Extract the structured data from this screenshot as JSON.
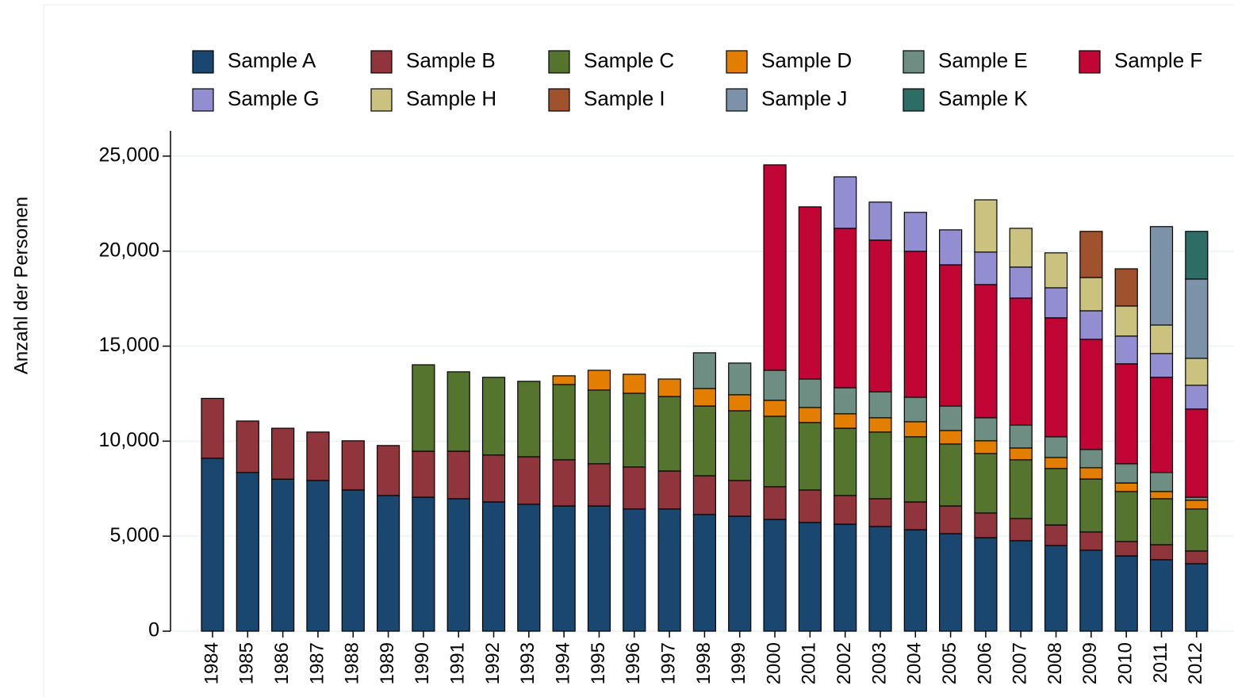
{
  "chart_data": {
    "type": "stacked_bar",
    "y_label": "Anzahl der Personen",
    "categories": [
      "1984",
      "1985",
      "1986",
      "1987",
      "1988",
      "1989",
      "1990",
      "1991",
      "1992",
      "1993",
      "1994",
      "1995",
      "1996",
      "1997",
      "1998",
      "1999",
      "2000",
      "2001",
      "2002",
      "2003",
      "2004",
      "2005",
      "2006",
      "2007",
      "2008",
      "2009",
      "2010",
      "2011",
      "2012"
    ],
    "ylim": [
      0,
      26330
    ],
    "yticks": [
      0,
      {
        "value": 5000,
        "label": "5,000"
      },
      {
        "value": 10000,
        "label": "10,000"
      },
      {
        "value": 15000,
        "label": "15,000"
      },
      {
        "value": 20000,
        "label": "20,000"
      },
      {
        "value": 25000,
        "label": "25,000"
      }
    ],
    "grid": true,
    "legend": "top",
    "series": [
      {
        "name": "Sample A",
        "color": "#1a476f",
        "values": [
          9100,
          8350,
          8000,
          7930,
          7430,
          7140,
          7050,
          6970,
          6800,
          6680,
          6590,
          6590,
          6430,
          6430,
          6140,
          6050,
          5880,
          5720,
          5630,
          5510,
          5340,
          5130,
          4920,
          4760,
          4510,
          4260,
          3960,
          3760,
          3550
        ]
      },
      {
        "name": "Sample B",
        "color": "#90353b",
        "values": [
          3150,
          2710,
          2680,
          2550,
          2590,
          2630,
          2420,
          2500,
          2470,
          2500,
          2430,
          2220,
          2210,
          2000,
          2040,
          1880,
          1720,
          1710,
          1510,
          1460,
          1460,
          1460,
          1300,
          1170,
          1080,
          960,
          760,
          790,
          670
        ]
      },
      {
        "name": "Sample C",
        "color": "#55752f",
        "values": [
          null,
          null,
          null,
          null,
          null,
          null,
          4550,
          4180,
          4090,
          3970,
          3960,
          3880,
          3880,
          3920,
          3670,
          3670,
          3710,
          3550,
          3540,
          3510,
          3430,
          3260,
          3130,
          3090,
          2970,
          2790,
          2630,
          2420,
          2210
        ]
      },
      {
        "name": "Sample D",
        "color": "#e37e00",
        "values": [
          null,
          null,
          null,
          null,
          null,
          null,
          null,
          null,
          null,
          null,
          460,
          1040,
          1000,
          920,
          920,
          840,
          840,
          790,
          760,
          750,
          790,
          710,
          670,
          620,
          580,
          590,
          450,
          380,
          460
        ]
      },
      {
        "name": "Sample E",
        "color": "#6e8e84",
        "values": [
          null,
          null,
          null,
          null,
          null,
          null,
          null,
          null,
          null,
          null,
          null,
          null,
          null,
          null,
          1880,
          1670,
          1580,
          1500,
          1370,
          1370,
          1290,
          1290,
          1210,
          1210,
          1090,
          960,
          1010,
          1000,
          160
        ]
      },
      {
        "name": "Sample F",
        "color": "#c10534",
        "values": [
          null,
          null,
          null,
          null,
          null,
          null,
          null,
          null,
          null,
          null,
          null,
          null,
          null,
          null,
          null,
          null,
          10810,
          9060,
          8390,
          7980,
          7680,
          7430,
          7010,
          6680,
          6260,
          5800,
          5260,
          5010,
          4640
        ]
      },
      {
        "name": "Sample G",
        "color": "#938dd2",
        "values": [
          null,
          null,
          null,
          null,
          null,
          null,
          null,
          null,
          null,
          null,
          null,
          null,
          null,
          null,
          null,
          null,
          null,
          null,
          2710,
          2000,
          2050,
          1840,
          1710,
          1630,
          1580,
          1500,
          1460,
          1250,
          1250
        ]
      },
      {
        "name": "Sample H",
        "color": "#cac27e",
        "values": [
          null,
          null,
          null,
          null,
          null,
          null,
          null,
          null,
          null,
          null,
          null,
          null,
          null,
          null,
          null,
          null,
          null,
          null,
          null,
          null,
          null,
          null,
          2750,
          2040,
          1840,
          1750,
          1580,
          1500,
          1420
        ]
      },
      {
        "name": "Sample I",
        "color": "#a0522d",
        "values": [
          null,
          null,
          null,
          null,
          null,
          null,
          null,
          null,
          null,
          null,
          null,
          null,
          null,
          null,
          null,
          null,
          null,
          null,
          null,
          null,
          null,
          null,
          null,
          null,
          null,
          2430,
          1960,
          null,
          null
        ]
      },
      {
        "name": "Sample J",
        "color": "#7b92a8",
        "values": [
          null,
          null,
          null,
          null,
          null,
          null,
          null,
          null,
          null,
          null,
          null,
          null,
          null,
          null,
          null,
          null,
          null,
          null,
          null,
          null,
          null,
          null,
          null,
          null,
          null,
          null,
          null,
          5180,
          4170
        ]
      },
      {
        "name": "Sample K",
        "color": "#2d6d66",
        "values": [
          null,
          null,
          null,
          null,
          null,
          null,
          null,
          null,
          null,
          null,
          null,
          null,
          null,
          null,
          null,
          null,
          null,
          null,
          null,
          null,
          null,
          null,
          null,
          null,
          null,
          null,
          null,
          null,
          2510
        ]
      }
    ]
  }
}
